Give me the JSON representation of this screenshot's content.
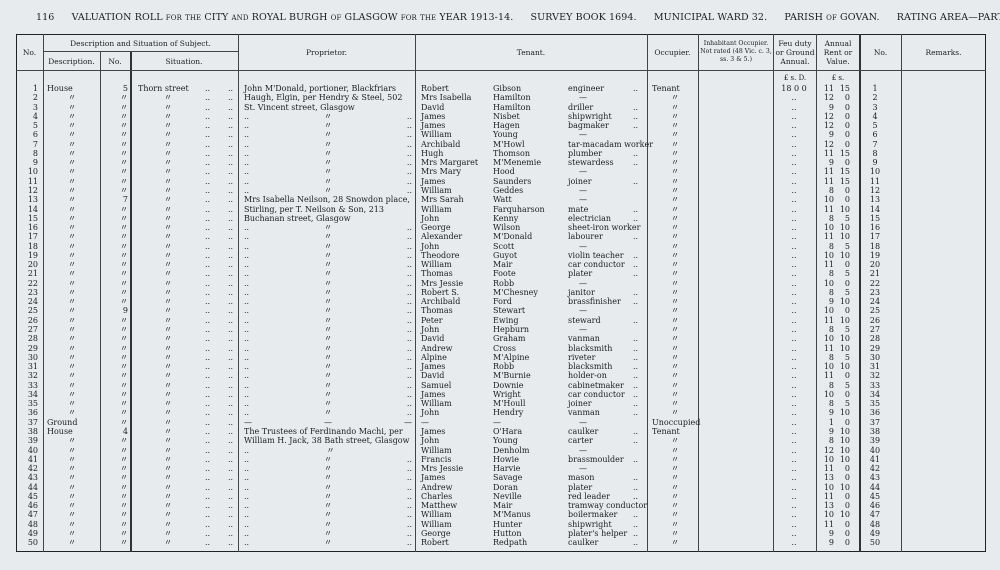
{
  "header": {
    "page_number": "116",
    "title": "VALUATION ROLL for the CITY and ROYAL BURGH of GLASGOW for the YEAR 1913-14.",
    "survey_book": "SURVEY BOOK 1694.",
    "ward": "MUNICIPAL WARD 32.",
    "parish": "PARISH of GOVAN.",
    "rating_area": "RATING AREA—PARTICK."
  },
  "columns": {
    "no": "No.",
    "subject_group": "Description and Situation of Subject.",
    "description": "Description.",
    "subject_no": "No.",
    "situation": "Situation.",
    "proprietor": "Proprietor.",
    "tenant": "Tenant.",
    "occupier": "Occupier.",
    "inhabitant": "Inhabitant Occupier. Not rated (48 Vic. c. 3, ss. 3 & 5.)",
    "feu": "Feu duty or Ground Annual.",
    "rent": "Annual Rent or Value.",
    "no_right": "No.",
    "remarks": "Remarks.",
    "feu_units": "£  s.  D.",
    "rent_units": "£  s."
  },
  "ditto": "〃",
  "rows": [
    [
      "1",
      "House",
      "5",
      "Thorn street",
      "John M'Donald, portioner, Blackfriars",
      "Robert",
      "Gibson",
      "engineer",
      "Tenant",
      "18  0  0",
      "11",
      "15",
      "1"
    ],
    [
      "2",
      "〃",
      "〃",
      "〃",
      "Haugh, Elgin, per Hendry & Steel, 502",
      "Mrs Isabella",
      "Hamilton",
      "—",
      "〃",
      "..",
      "12",
      "0",
      "2"
    ],
    [
      "3",
      "〃",
      "〃",
      "〃",
      "St. Vincent street, Glasgow",
      "David",
      "Hamilton",
      "driller",
      "〃",
      "..",
      "9",
      "0",
      "3"
    ],
    [
      "4",
      "〃",
      "〃",
      "〃",
      "〃",
      "James",
      "Nisbet",
      "shipwright",
      "〃",
      "..",
      "12",
      "0",
      "4"
    ],
    [
      "5",
      "〃",
      "〃",
      "〃",
      "〃",
      "James",
      "Hagen",
      "bagmaker",
      "〃",
      "..",
      "12",
      "0",
      "5"
    ],
    [
      "6",
      "〃",
      "〃",
      "〃",
      "〃",
      "William",
      "Young",
      "—",
      "〃",
      "..",
      "9",
      "0",
      "6"
    ],
    [
      "7",
      "〃",
      "〃",
      "〃",
      "〃",
      "Archibald",
      "M'Howl",
      "tar-macadam worker",
      "〃",
      "..",
      "12",
      "0",
      "7"
    ],
    [
      "8",
      "〃",
      "〃",
      "〃",
      "〃",
      "Hugh",
      "Thomson",
      "plumber",
      "〃",
      "..",
      "11",
      "15",
      "8"
    ],
    [
      "9",
      "〃",
      "〃",
      "〃",
      "〃",
      "Mrs Margaret",
      "M'Menemie",
      "stewardess",
      "〃",
      "..",
      "9",
      "0",
      "9"
    ],
    [
      "10",
      "〃",
      "〃",
      "〃",
      "〃",
      "Mrs Mary",
      "Hood",
      "—",
      "〃",
      "..",
      "11",
      "15",
      "10"
    ],
    [
      "11",
      "〃",
      "〃",
      "〃",
      "〃",
      "James",
      "Saunders",
      "joiner",
      "〃",
      "..",
      "11",
      "15",
      "11"
    ],
    [
      "12",
      "〃",
      "〃",
      "〃",
      "〃",
      "William",
      "Geddes",
      "—",
      "〃",
      "..",
      "8",
      "0",
      "12"
    ],
    [
      "13",
      "〃",
      "7",
      "〃",
      "Mrs Isabella Neilson, 28 Snowdon place,",
      "Mrs Sarah",
      "Watt",
      "—",
      "〃",
      "..",
      "10",
      "0",
      "13"
    ],
    [
      "14",
      "〃",
      "〃",
      "〃",
      "Stirling, per T. Neilson & Son, 213",
      "William",
      "Farquharson",
      "mate",
      "〃",
      "..",
      "11",
      "10",
      "14"
    ],
    [
      "15",
      "〃",
      "〃",
      "〃",
      "Buchanan street, Glasgow",
      "John",
      "Kenny",
      "electrician",
      "〃",
      "..",
      "8",
      "5",
      "15"
    ],
    [
      "16",
      "〃",
      "〃",
      "〃",
      "〃",
      "George",
      "Wilson",
      "sheet-iron worker",
      "〃",
      "..",
      "10",
      "10",
      "16"
    ],
    [
      "17",
      "〃",
      "〃",
      "〃",
      "〃",
      "Alexander",
      "M'Donald",
      "labourer",
      "〃",
      "..",
      "11",
      "10",
      "17"
    ],
    [
      "18",
      "〃",
      "〃",
      "〃",
      "〃",
      "John",
      "Scott",
      "—",
      "〃",
      "..",
      "8",
      "5",
      "18"
    ],
    [
      "19",
      "〃",
      "〃",
      "〃",
      "〃",
      "Theodore",
      "Guyot",
      "violin teacher",
      "〃",
      "..",
      "10",
      "10",
      "19"
    ],
    [
      "20",
      "〃",
      "〃",
      "〃",
      "〃",
      "William",
      "Mair",
      "car conductor",
      "〃",
      "..",
      "11",
      "0",
      "20"
    ],
    [
      "21",
      "〃",
      "〃",
      "〃",
      "〃",
      "Thomas",
      "Foote",
      "plater",
      "〃",
      "..",
      "8",
      "5",
      "21"
    ],
    [
      "22",
      "〃",
      "〃",
      "〃",
      "〃",
      "Mrs Jessie",
      "Robb",
      "—",
      "〃",
      "..",
      "10",
      "0",
      "22"
    ],
    [
      "23",
      "〃",
      "〃",
      "〃",
      "〃",
      "Robert S.",
      "M'Chesney",
      "janitor",
      "〃",
      "..",
      "8",
      "5",
      "23"
    ],
    [
      "24",
      "〃",
      "〃",
      "〃",
      "〃",
      "Archibald",
      "Ford",
      "brassfinisher",
      "〃",
      "..",
      "9",
      "10",
      "24"
    ],
    [
      "25",
      "〃",
      "9",
      "〃",
      "〃",
      "Thomas",
      "Stewart",
      "—",
      "〃",
      "..",
      "10",
      "0",
      "25"
    ],
    [
      "26",
      "〃",
      "〃",
      "〃",
      "〃",
      "Peter",
      "Ewing",
      "steward",
      "〃",
      "..",
      "11",
      "10",
      "26"
    ],
    [
      "27",
      "〃",
      "〃",
      "〃",
      "〃",
      "John",
      "Hepburn",
      "—",
      "〃",
      "..",
      "8",
      "5",
      "27"
    ],
    [
      "28",
      "〃",
      "〃",
      "〃",
      "〃",
      "David",
      "Graham",
      "vanman",
      "〃",
      "..",
      "10",
      "10",
      "28"
    ],
    [
      "29",
      "〃",
      "〃",
      "〃",
      "〃",
      "Andrew",
      "Cross",
      "blacksmith",
      "〃",
      "..",
      "11",
      "10",
      "29"
    ],
    [
      "30",
      "〃",
      "〃",
      "〃",
      "〃",
      "Alpine",
      "M'Alpine",
      "riveter",
      "〃",
      "..",
      "8",
      "5",
      "30"
    ],
    [
      "31",
      "〃",
      "〃",
      "〃",
      "〃",
      "James",
      "Robb",
      "blacksmith",
      "〃",
      "..",
      "10",
      "10",
      "31"
    ],
    [
      "32",
      "〃",
      "〃",
      "〃",
      "〃",
      "David",
      "M'Burnie",
      "holder-on",
      "〃",
      "..",
      "11",
      "0",
      "32"
    ],
    [
      "33",
      "〃",
      "〃",
      "〃",
      "〃",
      "Samuel",
      "Downie",
      "cabinetmaker",
      "〃",
      "..",
      "8",
      "5",
      "33"
    ],
    [
      "34",
      "〃",
      "〃",
      "〃",
      "〃",
      "James",
      "Wright",
      "car conductor",
      "〃",
      "..",
      "10",
      "0",
      "34"
    ],
    [
      "35",
      "〃",
      "〃",
      "〃",
      "〃",
      "William",
      "M'Houll",
      "joiner",
      "〃",
      "..",
      "8",
      "5",
      "35"
    ],
    [
      "36",
      "〃",
      "〃",
      "〃",
      "〃",
      "John",
      "Hendry",
      "vanman",
      "〃",
      "..",
      "9",
      "10",
      "36"
    ],
    [
      "37",
      "Ground",
      "〃",
      "〃",
      "—",
      "—",
      "—",
      "—",
      "Unoccupied",
      "..",
      "1",
      "0",
      "37"
    ],
    [
      "38",
      "House",
      "4",
      "〃",
      "The Trustees of Ferdinando Machi, per",
      "James",
      "O'Hara",
      "caulker",
      "Tenant",
      "..",
      "9",
      "10",
      "38"
    ],
    [
      "39",
      "〃",
      "〃",
      "〃",
      "William H. Jack, 38 Bath street, Glasgow",
      "John",
      "Young",
      "carter",
      "〃",
      "..",
      "8",
      "10",
      "39"
    ],
    [
      "40",
      "〃",
      "〃",
      "〃",
      "〃",
      "William",
      "Denholm",
      "—",
      "〃",
      "..",
      "12",
      "10",
      "40"
    ],
    [
      "41",
      "〃",
      "〃",
      "〃",
      "〃",
      "Francis",
      "Howie",
      "brassmoulder",
      "〃",
      "..",
      "10",
      "10",
      "41"
    ],
    [
      "42",
      "〃",
      "〃",
      "〃",
      "〃",
      "Mrs Jessie",
      "Harvie",
      "—",
      "〃",
      "..",
      "11",
      "0",
      "42"
    ],
    [
      "43",
      "〃",
      "〃",
      "〃",
      "〃",
      "James",
      "Savage",
      "mason",
      "〃",
      "..",
      "13",
      "0",
      "43"
    ],
    [
      "44",
      "〃",
      "〃",
      "〃",
      "〃",
      "Andrew",
      "Doran",
      "plater",
      "〃",
      "..",
      "10",
      "10",
      "44"
    ],
    [
      "45",
      "〃",
      "〃",
      "〃",
      "〃",
      "Charles",
      "Neville",
      "red leader",
      "〃",
      "..",
      "11",
      "0",
      "45"
    ],
    [
      "46",
      "〃",
      "〃",
      "〃",
      "〃",
      "Matthew",
      "Mair",
      "tramway conductor",
      "〃",
      "..",
      "13",
      "0",
      "46"
    ],
    [
      "47",
      "〃",
      "〃",
      "〃",
      "〃",
      "William",
      "M'Manus",
      "boilermaker",
      "〃",
      "..",
      "10",
      "10",
      "47"
    ],
    [
      "48",
      "〃",
      "〃",
      "〃",
      "〃",
      "William",
      "Hunter",
      "shipwright",
      "〃",
      "..",
      "11",
      "0",
      "48"
    ],
    [
      "49",
      "〃",
      "〃",
      "〃",
      "〃",
      "George",
      "Hutton",
      "plater's helper",
      "〃",
      "..",
      "9",
      "0",
      "49"
    ],
    [
      "50",
      "〃",
      "〃",
      "〃",
      "〃",
      "Robert",
      "Redpath",
      "caulker",
      "〃",
      "..",
      "9",
      "0",
      "50"
    ]
  ]
}
